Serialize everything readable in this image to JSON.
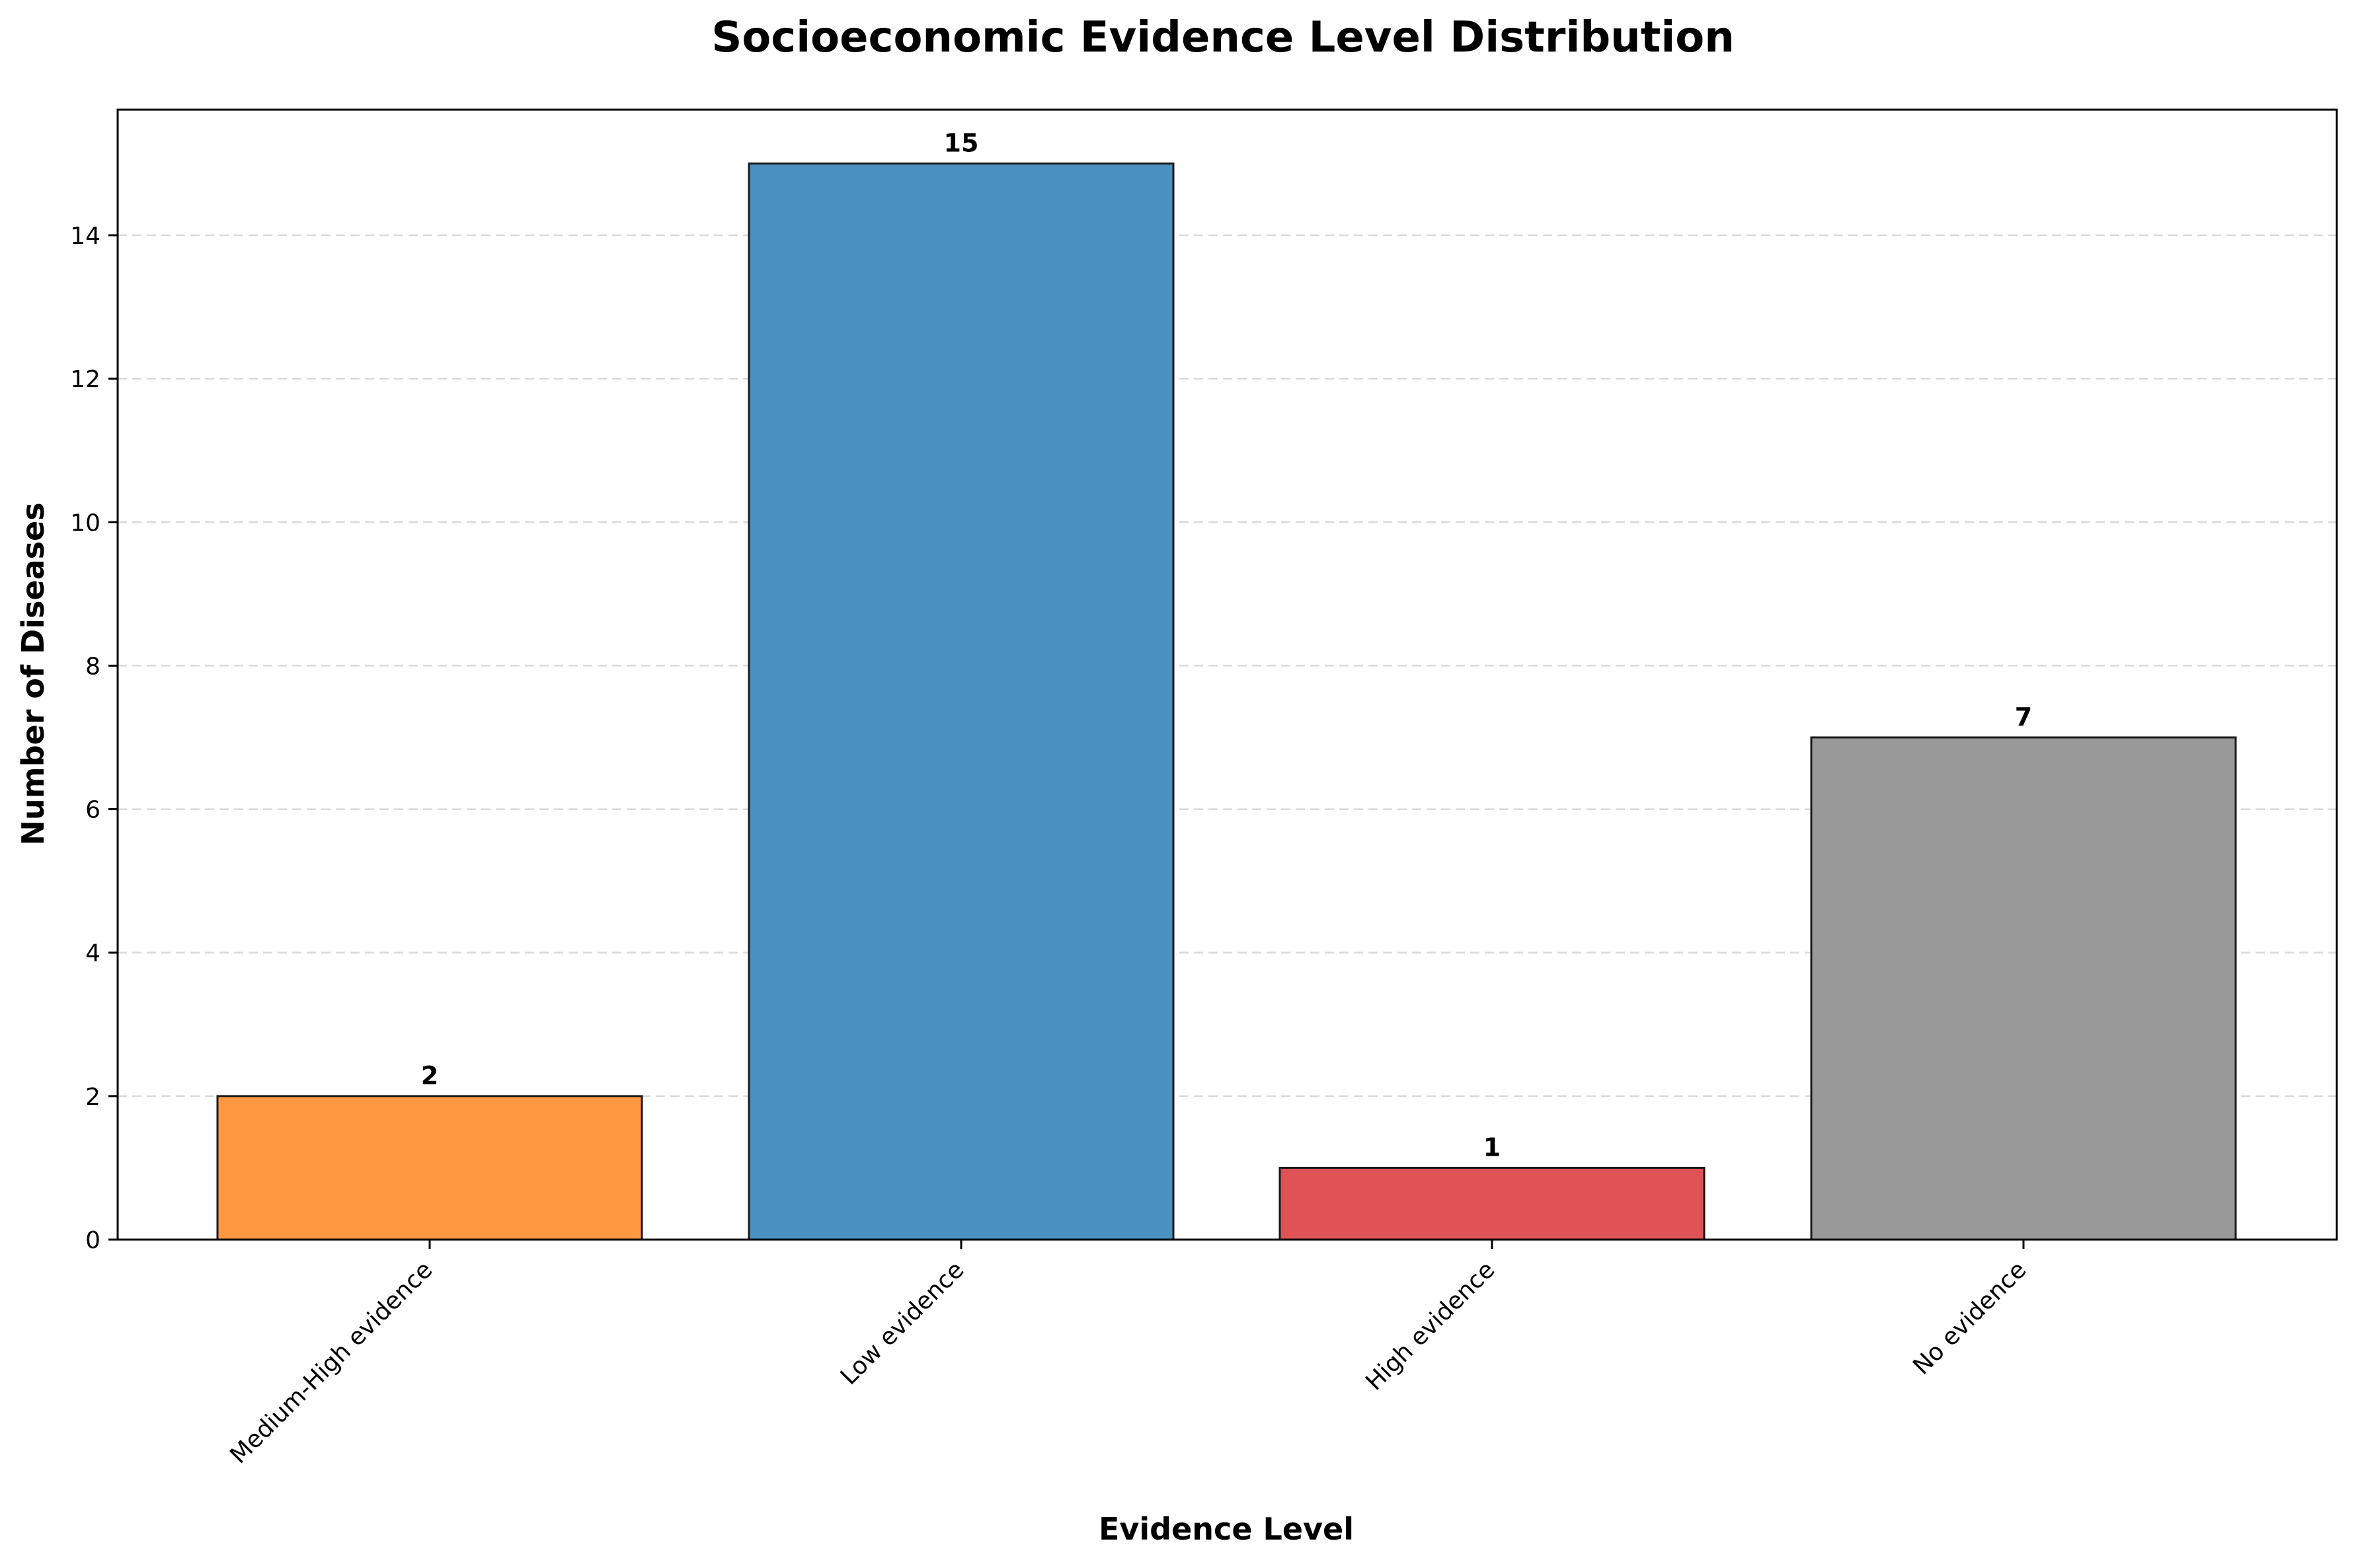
{
  "chart_data": {
    "type": "bar",
    "title": "Socioeconomic Evidence Level Distribution",
    "xlabel": "Evidence Level",
    "ylabel": "Number of Diseases",
    "categories": [
      "Medium-High evidence",
      "Low evidence",
      "High evidence",
      "No evidence"
    ],
    "values": [
      2,
      15,
      1,
      7
    ],
    "data_labels": [
      "2",
      "15",
      "1",
      "7"
    ],
    "colors": [
      "#ff9841",
      "#4a91c2",
      "#df5256",
      "#999999"
    ],
    "ylim": [
      0,
      15.75
    ],
    "yticks": [
      0,
      2,
      4,
      6,
      8,
      10,
      12,
      14
    ],
    "ytick_labels": [
      "0",
      "2",
      "4",
      "6",
      "8",
      "10",
      "12",
      "14"
    ],
    "grid": "y-axis dashed",
    "legend": "none"
  }
}
